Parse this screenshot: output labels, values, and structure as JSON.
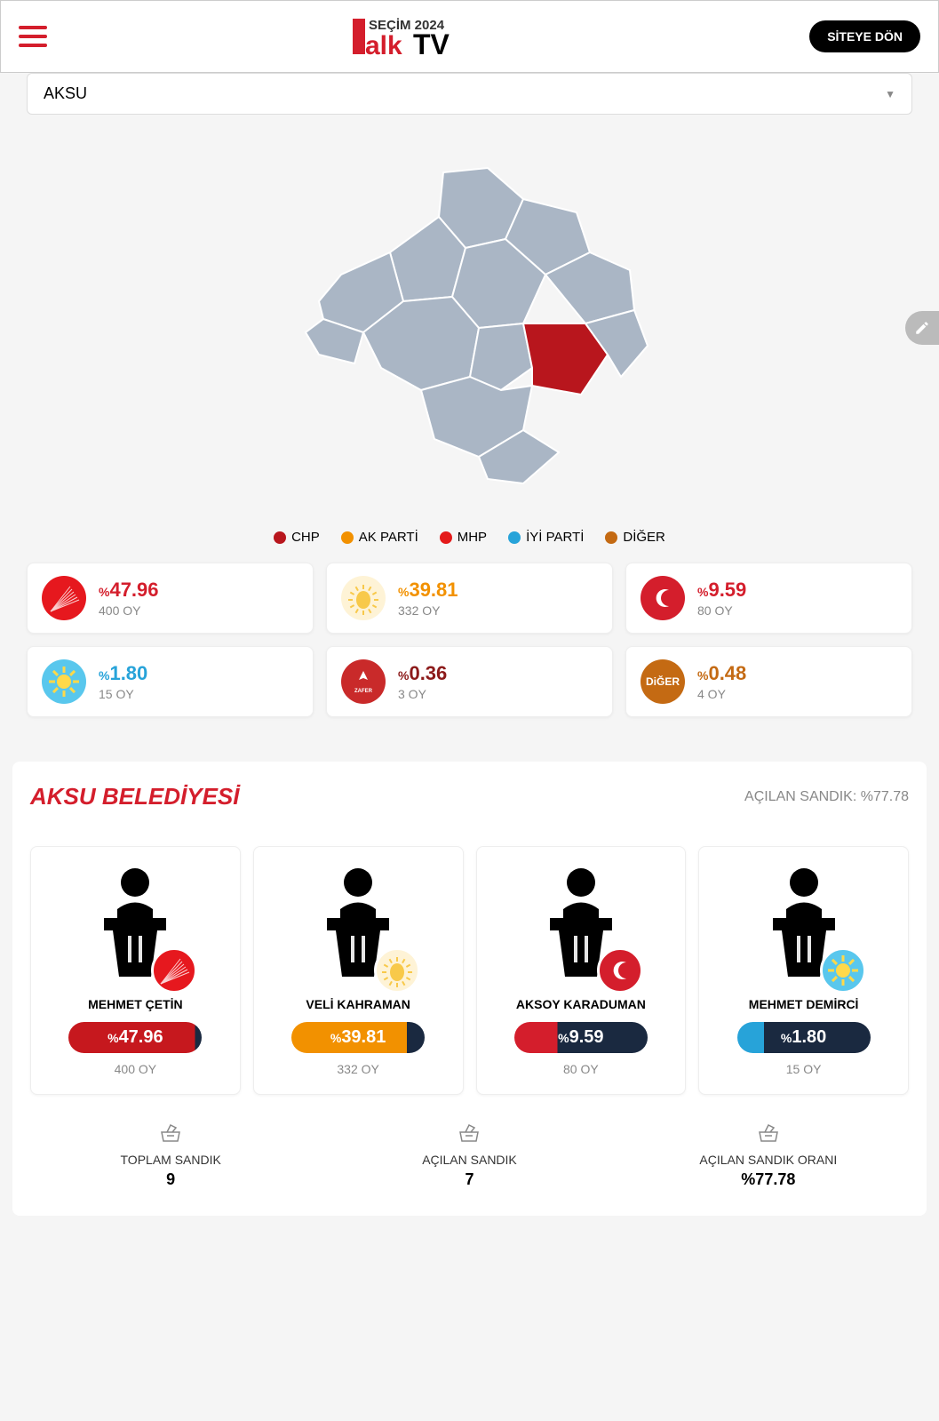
{
  "header": {
    "logo_top": "SEÇİM 2024",
    "logo_main1": "alk",
    "logo_main2": "TV",
    "return_btn": "SİTEYE DÖN"
  },
  "dropdown": {
    "selected": "AKSU"
  },
  "legend": [
    {
      "label": "CHP",
      "color": "#b8161d"
    },
    {
      "label": "AK PARTİ",
      "color": "#f29100"
    },
    {
      "label": "MHP",
      "color": "#e41b1b"
    },
    {
      "label": "İYİ PARTİ",
      "color": "#27a3d9"
    },
    {
      "label": "DİĞER",
      "color": "#c46a13"
    }
  ],
  "map": {
    "fill": "#aab6c5",
    "highlight": "#b8161d",
    "stroke": "#ffffff"
  },
  "parties": [
    {
      "pct": "47.96",
      "votes": "400 OY",
      "color": "#d41e2c",
      "pct_color": "#d41e2c",
      "icon_bg": "#e6181e",
      "icon_label": ""
    },
    {
      "pct": "39.81",
      "votes": "332 OY",
      "color": "#f29100",
      "pct_color": "#f29100",
      "icon_bg": "#fef3d6",
      "icon_label": ""
    },
    {
      "pct": "9.59",
      "votes": "80 OY",
      "color": "#d41e2c",
      "pct_color": "#d41e2c",
      "icon_bg": "#d41e2c",
      "icon_label": ""
    },
    {
      "pct": "1.80",
      "votes": "15 OY",
      "color": "#27a3d9",
      "pct_color": "#27a3d9",
      "icon_bg": "#59c7ed",
      "icon_label": ""
    },
    {
      "pct": "0.36",
      "votes": "3 OY",
      "color": "#8c1a1a",
      "pct_color": "#8c1a1a",
      "icon_bg": "#c92a2a",
      "icon_label": ""
    },
    {
      "pct": "0.48",
      "votes": "4 OY",
      "color": "#c46a13",
      "pct_color": "#c46a13",
      "icon_bg": "#c46a13",
      "icon_label": "DiĞER"
    }
  ],
  "section": {
    "title": "AKSU BELEDİYESİ",
    "sub": "AÇILAN SANDIK: %77.78"
  },
  "candidates": [
    {
      "name": "MEHMET ÇETİN",
      "pct": "47.96",
      "votes": "400 OY",
      "pill_left": "#c6181e",
      "pill_right": "#1a2940",
      "badge_bg": "#e6181e"
    },
    {
      "name": "VELİ KAHRAMAN",
      "pct": "39.81",
      "votes": "332 OY",
      "pill_left": "#f29100",
      "pill_right": "#1a2940",
      "badge_bg": "#fef3d6"
    },
    {
      "name": "AKSOY KARADUMAN",
      "pct": "9.59",
      "votes": "80 OY",
      "pill_left": "#d41e2c",
      "pill_right": "#1a2940",
      "badge_bg": "#d41e2c"
    },
    {
      "name": "MEHMET DEMİRCİ",
      "pct": "1.80",
      "votes": "15 OY",
      "pill_left": "#27a3d9",
      "pill_right": "#1a2940",
      "badge_bg": "#59c7ed"
    }
  ],
  "stats": [
    {
      "label": "TOPLAM SANDIK",
      "value": "9"
    },
    {
      "label": "AÇILAN SANDIK",
      "value": "7"
    },
    {
      "label": "AÇILAN SANDIK ORANI",
      "value": "%77.78"
    }
  ]
}
